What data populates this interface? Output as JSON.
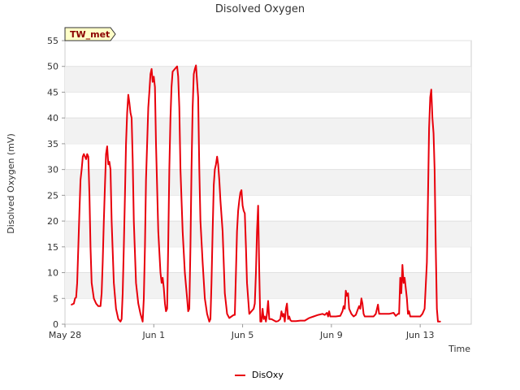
{
  "chart_data": {
    "type": "line",
    "title": "Disolved Oxygen",
    "xlabel": "Time",
    "ylabel": "Disolved Oxygen (mV)",
    "ylim": [
      0,
      55
    ],
    "yticks": [
      0,
      5,
      10,
      15,
      20,
      25,
      30,
      35,
      40,
      45,
      50,
      55
    ],
    "xlim": [
      0,
      18.3
    ],
    "xticks": [
      {
        "value": 0,
        "label": "May 28"
      },
      {
        "value": 4,
        "label": "Jun 1"
      },
      {
        "value": 8,
        "label": "Jun 5"
      },
      {
        "value": 12,
        "label": "Jun 9"
      },
      {
        "value": 16,
        "label": "Jun 13"
      }
    ],
    "grid": "horizontal-bands",
    "site_label": "TW_met",
    "legend": {
      "position": "bottom-center",
      "entries": [
        "DisOxy"
      ]
    },
    "series": [
      {
        "name": "DisOxy",
        "color": "#e8000b",
        "points": [
          [
            0.3,
            3.8
          ],
          [
            0.4,
            4.0
          ],
          [
            0.45,
            5.0
          ],
          [
            0.5,
            5.2
          ],
          [
            0.55,
            8
          ],
          [
            0.6,
            15
          ],
          [
            0.65,
            22
          ],
          [
            0.7,
            28
          ],
          [
            0.75,
            30
          ],
          [
            0.8,
            32.5
          ],
          [
            0.85,
            33
          ],
          [
            0.9,
            32.5
          ],
          [
            0.95,
            32
          ],
          [
            1.0,
            33
          ],
          [
            1.05,
            32.5
          ],
          [
            1.1,
            25
          ],
          [
            1.15,
            15
          ],
          [
            1.2,
            8
          ],
          [
            1.3,
            5
          ],
          [
            1.4,
            4
          ],
          [
            1.5,
            3.5
          ],
          [
            1.6,
            3.5
          ],
          [
            1.65,
            6
          ],
          [
            1.7,
            12
          ],
          [
            1.75,
            20
          ],
          [
            1.8,
            27
          ],
          [
            1.85,
            33
          ],
          [
            1.9,
            34.5
          ],
          [
            1.95,
            31
          ],
          [
            2.0,
            31.5
          ],
          [
            2.05,
            30
          ],
          [
            2.1,
            20
          ],
          [
            2.2,
            8
          ],
          [
            2.3,
            3
          ],
          [
            2.4,
            1
          ],
          [
            2.5,
            0.5
          ],
          [
            2.55,
            1
          ],
          [
            2.6,
            6
          ],
          [
            2.65,
            15
          ],
          [
            2.7,
            25
          ],
          [
            2.75,
            35
          ],
          [
            2.8,
            41
          ],
          [
            2.85,
            44.5
          ],
          [
            2.9,
            43
          ],
          [
            2.95,
            41
          ],
          [
            3.0,
            40
          ],
          [
            3.05,
            32
          ],
          [
            3.1,
            20
          ],
          [
            3.2,
            8
          ],
          [
            3.3,
            4
          ],
          [
            3.4,
            2
          ],
          [
            3.5,
            0.5
          ],
          [
            3.55,
            5
          ],
          [
            3.6,
            15
          ],
          [
            3.65,
            28
          ],
          [
            3.7,
            35
          ],
          [
            3.75,
            42
          ],
          [
            3.8,
            45
          ],
          [
            3.85,
            48.5
          ],
          [
            3.9,
            49.5
          ],
          [
            3.95,
            47
          ],
          [
            4.0,
            48
          ],
          [
            4.05,
            46
          ],
          [
            4.1,
            35
          ],
          [
            4.2,
            18
          ],
          [
            4.3,
            10
          ],
          [
            4.35,
            8
          ],
          [
            4.4,
            9
          ],
          [
            4.45,
            7
          ],
          [
            4.5,
            4
          ],
          [
            4.55,
            2.5
          ],
          [
            4.6,
            3
          ],
          [
            4.65,
            15
          ],
          [
            4.7,
            30
          ],
          [
            4.75,
            40
          ],
          [
            4.8,
            46
          ],
          [
            4.85,
            49
          ],
          [
            4.95,
            49.5
          ],
          [
            5.05,
            50
          ],
          [
            5.1,
            48
          ],
          [
            5.15,
            42
          ],
          [
            5.2,
            30
          ],
          [
            5.3,
            18
          ],
          [
            5.4,
            10
          ],
          [
            5.5,
            5
          ],
          [
            5.55,
            2.5
          ],
          [
            5.6,
            3
          ],
          [
            5.65,
            15
          ],
          [
            5.7,
            30
          ],
          [
            5.75,
            42
          ],
          [
            5.8,
            48.5
          ],
          [
            5.85,
            49.5
          ],
          [
            5.9,
            50.2
          ],
          [
            5.95,
            47
          ],
          [
            6.0,
            44
          ],
          [
            6.05,
            30
          ],
          [
            6.1,
            20
          ],
          [
            6.2,
            12
          ],
          [
            6.3,
            5
          ],
          [
            6.4,
            2
          ],
          [
            6.5,
            0.5
          ],
          [
            6.55,
            1
          ],
          [
            6.6,
            8
          ],
          [
            6.65,
            18
          ],
          [
            6.7,
            27
          ],
          [
            6.75,
            30
          ],
          [
            6.8,
            31
          ],
          [
            6.85,
            32.5
          ],
          [
            6.9,
            31
          ],
          [
            6.95,
            28
          ],
          [
            7.0,
            24
          ],
          [
            7.1,
            18
          ],
          [
            7.2,
            6
          ],
          [
            7.3,
            2
          ],
          [
            7.4,
            1.2
          ],
          [
            7.5,
            1.5
          ],
          [
            7.6,
            1.8
          ],
          [
            7.65,
            1.8
          ],
          [
            7.7,
            10
          ],
          [
            7.75,
            18
          ],
          [
            7.8,
            22
          ],
          [
            7.85,
            24
          ],
          [
            7.9,
            25.5
          ],
          [
            7.95,
            26
          ],
          [
            8.0,
            23
          ],
          [
            8.05,
            22
          ],
          [
            8.1,
            21.5
          ],
          [
            8.15,
            15
          ],
          [
            8.2,
            8
          ],
          [
            8.3,
            2
          ],
          [
            8.4,
            2.5
          ],
          [
            8.5,
            3
          ],
          [
            8.55,
            4
          ],
          [
            8.6,
            10
          ],
          [
            8.65,
            18
          ],
          [
            8.7,
            23
          ],
          [
            8.75,
            10
          ],
          [
            8.8,
            0.5
          ],
          [
            8.85,
            0.5
          ],
          [
            8.9,
            3
          ],
          [
            8.95,
            1
          ],
          [
            9.0,
            1.5
          ],
          [
            9.05,
            0.5
          ],
          [
            9.1,
            2
          ],
          [
            9.15,
            4.5
          ],
          [
            9.2,
            1
          ],
          [
            9.3,
            1
          ],
          [
            9.5,
            0.5
          ],
          [
            9.6,
            0.6
          ],
          [
            9.7,
            1
          ],
          [
            9.75,
            2.5
          ],
          [
            9.8,
            1.5
          ],
          [
            9.85,
            2
          ],
          [
            9.9,
            0.5
          ],
          [
            9.95,
            3
          ],
          [
            10.0,
            4
          ],
          [
            10.05,
            1
          ],
          [
            10.1,
            1.5
          ],
          [
            10.15,
            0.8
          ],
          [
            10.2,
            0.6
          ],
          [
            10.4,
            0.6
          ],
          [
            10.6,
            0.7
          ],
          [
            10.8,
            0.7
          ],
          [
            11.0,
            1.2
          ],
          [
            11.2,
            1.5
          ],
          [
            11.4,
            1.8
          ],
          [
            11.6,
            2
          ],
          [
            11.7,
            1.8
          ],
          [
            11.8,
            2.2
          ],
          [
            11.85,
            1.5
          ],
          [
            11.9,
            2.5
          ],
          [
            11.95,
            1.5
          ],
          [
            12.0,
            1.5
          ],
          [
            12.2,
            1.5
          ],
          [
            12.4,
            1.6
          ],
          [
            12.5,
            2.5
          ],
          [
            12.55,
            3.5
          ],
          [
            12.6,
            3
          ],
          [
            12.65,
            6.5
          ],
          [
            12.7,
            5.5
          ],
          [
            12.75,
            6
          ],
          [
            12.8,
            3
          ],
          [
            12.9,
            2
          ],
          [
            13.0,
            1.5
          ],
          [
            13.1,
            1.8
          ],
          [
            13.2,
            3
          ],
          [
            13.25,
            3.5
          ],
          [
            13.3,
            3
          ],
          [
            13.35,
            5
          ],
          [
            13.4,
            4
          ],
          [
            13.45,
            2
          ],
          [
            13.5,
            1.5
          ],
          [
            13.7,
            1.5
          ],
          [
            13.9,
            1.5
          ],
          [
            14.0,
            2
          ],
          [
            14.1,
            3.8
          ],
          [
            14.15,
            2
          ],
          [
            14.2,
            2
          ],
          [
            14.4,
            2
          ],
          [
            14.6,
            2
          ],
          [
            14.8,
            2.2
          ],
          [
            14.9,
            1.6
          ],
          [
            15.0,
            2
          ],
          [
            15.05,
            2
          ],
          [
            15.1,
            9
          ],
          [
            15.15,
            6
          ],
          [
            15.2,
            11.5
          ],
          [
            15.25,
            8
          ],
          [
            15.3,
            9
          ],
          [
            15.35,
            7
          ],
          [
            15.4,
            5
          ],
          [
            15.45,
            2
          ],
          [
            15.5,
            2.5
          ],
          [
            15.55,
            1.5
          ],
          [
            15.6,
            1.5
          ],
          [
            15.8,
            1.5
          ],
          [
            16.0,
            1.5
          ],
          [
            16.1,
            2
          ],
          [
            16.2,
            3
          ],
          [
            16.3,
            12
          ],
          [
            16.35,
            24
          ],
          [
            16.4,
            38
          ],
          [
            16.45,
            44
          ],
          [
            16.5,
            45.5
          ],
          [
            16.55,
            40
          ],
          [
            16.6,
            37
          ],
          [
            16.65,
            30
          ],
          [
            16.7,
            15
          ],
          [
            16.75,
            3
          ],
          [
            16.8,
            0.5
          ],
          [
            16.9,
            0.5
          ]
        ]
      }
    ]
  }
}
